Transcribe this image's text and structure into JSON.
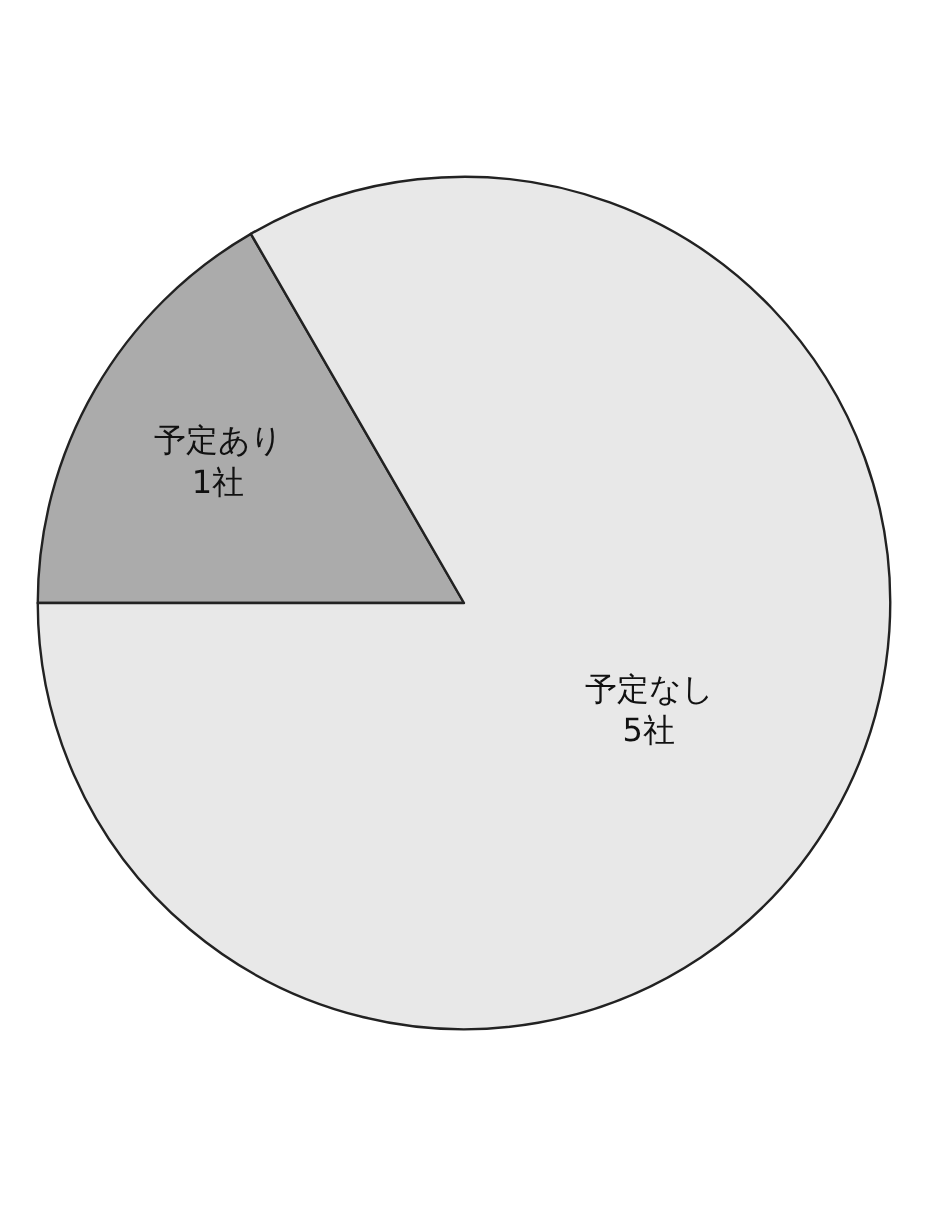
{
  "chart_data": {
    "type": "pie",
    "categories": [
      "予定あり",
      "予定なし"
    ],
    "values": [
      1,
      5
    ],
    "value_labels": [
      "1社",
      "5社"
    ],
    "colors": [
      "#ababab",
      "#e8e8e8"
    ],
    "legend": false
  }
}
